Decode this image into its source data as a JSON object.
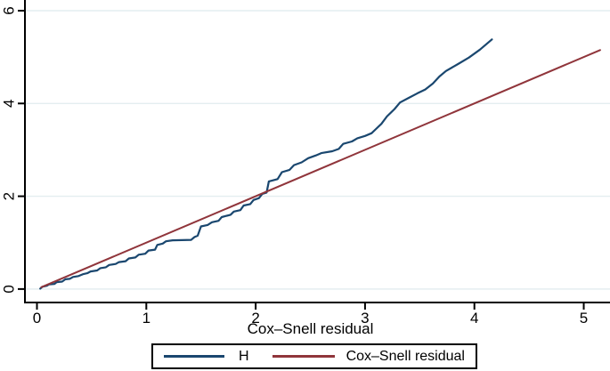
{
  "figure": {
    "background": "#ffffff",
    "axis_color": "#000000",
    "grid_color": "#e4eef0",
    "text_color": "#000000",
    "legend_border_color": "#000000"
  },
  "chart_data": {
    "type": "line",
    "title": "",
    "xlabel": "Cox–Snell residual",
    "ylabel": "",
    "x_ticks": [
      0,
      1,
      2,
      3,
      4,
      5
    ],
    "y_ticks": [
      0,
      2,
      4,
      6
    ],
    "xlim": [
      -0.11,
      5.24
    ],
    "ylim": [
      -0.29,
      6.23
    ],
    "grid": "horizontal gridlines at y ticks",
    "legend_position": "bottom-center-boxed",
    "series": [
      {
        "name": "H",
        "color": "#1a476f",
        "points": [
          [
            0.03,
            0.01
          ],
          [
            0.05,
            0.05
          ],
          [
            0.09,
            0.07
          ],
          [
            0.11,
            0.1
          ],
          [
            0.16,
            0.11
          ],
          [
            0.18,
            0.15
          ],
          [
            0.23,
            0.16
          ],
          [
            0.26,
            0.21
          ],
          [
            0.3,
            0.22
          ],
          [
            0.33,
            0.26
          ],
          [
            0.38,
            0.28
          ],
          [
            0.42,
            0.32
          ],
          [
            0.46,
            0.34
          ],
          [
            0.49,
            0.38
          ],
          [
            0.55,
            0.4
          ],
          [
            0.58,
            0.45
          ],
          [
            0.63,
            0.47
          ],
          [
            0.66,
            0.52
          ],
          [
            0.72,
            0.54
          ],
          [
            0.75,
            0.58
          ],
          [
            0.81,
            0.6
          ],
          [
            0.84,
            0.66
          ],
          [
            0.9,
            0.68
          ],
          [
            0.93,
            0.74
          ],
          [
            0.99,
            0.76
          ],
          [
            1.02,
            0.83
          ],
          [
            1.08,
            0.85
          ],
          [
            1.1,
            0.95
          ],
          [
            1.15,
            0.98
          ],
          [
            1.18,
            1.03
          ],
          [
            1.24,
            1.05
          ],
          [
            1.41,
            1.06
          ],
          [
            1.44,
            1.12
          ],
          [
            1.47,
            1.15
          ],
          [
            1.5,
            1.35
          ],
          [
            1.56,
            1.38
          ],
          [
            1.6,
            1.44
          ],
          [
            1.66,
            1.47
          ],
          [
            1.69,
            1.55
          ],
          [
            1.77,
            1.6
          ],
          [
            1.8,
            1.67
          ],
          [
            1.86,
            1.7
          ],
          [
            1.89,
            1.8
          ],
          [
            1.95,
            1.83
          ],
          [
            1.98,
            1.92
          ],
          [
            2.03,
            1.96
          ],
          [
            2.06,
            2.05
          ],
          [
            2.1,
            2.08
          ],
          [
            2.12,
            2.32
          ],
          [
            2.2,
            2.37
          ],
          [
            2.24,
            2.52
          ],
          [
            2.31,
            2.57
          ],
          [
            2.35,
            2.67
          ],
          [
            2.42,
            2.73
          ],
          [
            2.48,
            2.82
          ],
          [
            2.55,
            2.88
          ],
          [
            2.6,
            2.93
          ],
          [
            2.7,
            2.97
          ],
          [
            2.76,
            3.02
          ],
          [
            2.8,
            3.13
          ],
          [
            2.88,
            3.18
          ],
          [
            2.93,
            3.25
          ],
          [
            3.0,
            3.3
          ],
          [
            3.06,
            3.36
          ],
          [
            3.1,
            3.45
          ],
          [
            3.15,
            3.56
          ],
          [
            3.2,
            3.72
          ],
          [
            3.27,
            3.88
          ],
          [
            3.32,
            4.02
          ],
          [
            3.4,
            4.12
          ],
          [
            3.48,
            4.22
          ],
          [
            3.55,
            4.3
          ],
          [
            3.62,
            4.43
          ],
          [
            3.68,
            4.58
          ],
          [
            3.74,
            4.7
          ],
          [
            3.85,
            4.85
          ],
          [
            3.95,
            4.99
          ],
          [
            4.05,
            5.16
          ],
          [
            4.16,
            5.38
          ]
        ]
      },
      {
        "name": "Cox–Snell residual",
        "color": "#90353b",
        "points": [
          [
            0.04,
            0.04
          ],
          [
            5.15,
            5.15
          ]
        ]
      }
    ]
  }
}
